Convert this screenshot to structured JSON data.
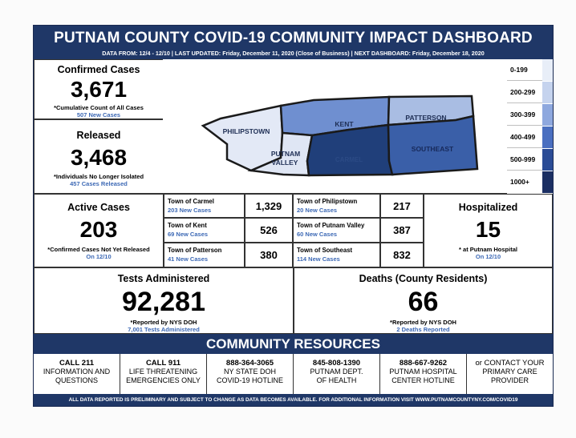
{
  "header": {
    "title": "PUTNAM COUNTY COVID-19 COMMUNITY IMPACT DASHBOARD",
    "subtitle": "DATA FROM: 12/4 - 12/10  |  LAST UPDATED:  Friday, December 11, 2020 (Close of Business)  |  NEXT DASHBOARD:  Friday, December 18, 2020"
  },
  "confirmed": {
    "label": "Confirmed Cases",
    "value": "3,671",
    "caption": "*Cumulative Count of All Cases",
    "sub": "507 New Cases"
  },
  "released": {
    "label": "Released",
    "value": "3,468",
    "caption": "*Individuals No Longer Isolated",
    "sub": "457 Cases Released"
  },
  "active": {
    "label": "Active Cases",
    "value": "203",
    "caption": "*Confirmed Cases Not Yet Released",
    "sub": "On 12/10"
  },
  "hospitalized": {
    "label": "Hospitalized",
    "value": "15",
    "caption": "* at Putnam Hospital",
    "sub": "On 12/10"
  },
  "tests": {
    "label": "Tests Administered",
    "value": "92,281",
    "caption": "*Reported by NYS DOH",
    "sub": "7,001 Tests Administered"
  },
  "deaths": {
    "label": "Deaths (County Residents)",
    "value": "66",
    "caption": "*Reported by NYS DOH",
    "sub": "2 Deaths Reported"
  },
  "map": {
    "regions": [
      {
        "name": "PHILIPSTOWN",
        "color": "#e3e9f6"
      },
      {
        "name": "KENT",
        "color": "#6f8fd0"
      },
      {
        "name": "PATTERSON",
        "color": "#a9bde3"
      },
      {
        "name": "PUTNAM",
        "name2": "VALLEY",
        "color": "#dfe6f4"
      },
      {
        "name": "CARMEL",
        "color": "#203f7a"
      },
      {
        "name": "SOUTHEAST",
        "color": "#3a5fa8"
      }
    ]
  },
  "legend": [
    {
      "label": "0-199",
      "color": "#e8eef8"
    },
    {
      "label": "200-299",
      "color": "#c5d3ee"
    },
    {
      "label": "300-399",
      "color": "#8ea8de"
    },
    {
      "label": "400-499",
      "color": "#4a6fc0"
    },
    {
      "label": "500-999",
      "color": "#2b4c96"
    },
    {
      "label": "1000+",
      "color": "#1b2f63"
    }
  ],
  "towns": [
    {
      "name": "Town of Carmel",
      "new": "203 New Cases",
      "value": "1,329"
    },
    {
      "name": "Town of Philipstown",
      "new": "20 New Cases",
      "value": "217"
    },
    {
      "name": "Town of Kent",
      "new": "69 New Cases",
      "value": "526"
    },
    {
      "name": "Town of Putnam Valley",
      "new": "60 New Cases",
      "value": "387"
    },
    {
      "name": "Town of Patterson",
      "new": "41 New Cases",
      "value": "380"
    },
    {
      "name": "Town of Southeast",
      "new": "114 New Cases",
      "value": "832"
    }
  ],
  "resources": {
    "title": "COMMUNITY RESOURCES",
    "items": [
      {
        "line1": "CALL 211",
        "line2": "INFORMATION AND",
        "line3": "QUESTIONS"
      },
      {
        "line1": "CALL 911",
        "line2": "LIFE THREATENING",
        "line3": "EMERGENCIES ONLY"
      },
      {
        "line1": "888-364-3065",
        "line2": "NY STATE DOH",
        "line3": "COVID-19 HOTLINE"
      },
      {
        "line1": "845-808-1390",
        "line2": "PUTNAM DEPT.",
        "line3": "OF HEALTH"
      },
      {
        "line1": "888-667-9262",
        "line2": "PUTNAM HOSPITAL",
        "line3": "CENTER HOTLINE"
      },
      {
        "line1": "or CONTACT YOUR",
        "line2": "PRIMARY CARE",
        "line3": "PROVIDER"
      }
    ]
  },
  "footer": "ALL DATA REPORTED IS PRELIMINARY AND SUBJECT TO CHANGE AS DATA BECOMES AVAILABLE. FOR ADDITIONAL INFORMATION VISIT WWW.PUTNAMCOUNTYNY.COM/COVID19"
}
